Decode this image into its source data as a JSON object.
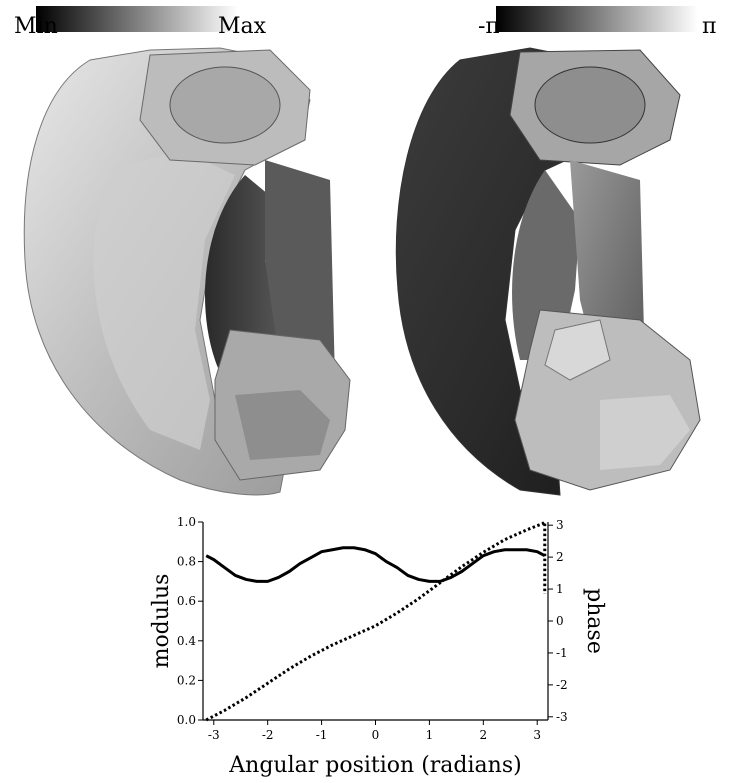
{
  "colorbars": {
    "modulus": {
      "min_label": "Min",
      "max_label": "Max",
      "from_color": "#000000",
      "to_color": "#ffffff"
    },
    "phase": {
      "min_label": "-π",
      "max_label": "π",
      "from_color": "#000000",
      "to_color": "#ffffff"
    }
  },
  "chart_data": {
    "type": "line",
    "xlabel": "Angular position (radians)",
    "ylabel": "modulus",
    "y2label": "phase",
    "xlim": [
      -3.2,
      3.2
    ],
    "ylim": [
      0,
      1.0
    ],
    "y2lim": [
      -3.1,
      3.1
    ],
    "xticks": [
      "-3",
      "-2",
      "-1",
      "0",
      "1",
      "2",
      "3"
    ],
    "yticks": [
      "0.0",
      "0.2",
      "0.4",
      "0.6",
      "0.8",
      "1.0"
    ],
    "y2ticks": [
      "-3",
      "-2",
      "-1",
      "0",
      "1",
      "2",
      "3"
    ],
    "series": [
      {
        "axis": "left",
        "style": "solid",
        "color": "#000000",
        "x": [
          -3.14,
          -3.0,
          -2.8,
          -2.6,
          -2.4,
          -2.2,
          -2.0,
          -1.8,
          -1.6,
          -1.4,
          -1.2,
          -1.0,
          -0.8,
          -0.6,
          -0.4,
          -0.2,
          0.0,
          0.2,
          0.4,
          0.6,
          0.8,
          1.0,
          1.2,
          1.4,
          1.6,
          1.8,
          2.0,
          2.2,
          2.4,
          2.6,
          2.8,
          3.0,
          3.14
        ],
        "y": [
          0.83,
          0.81,
          0.77,
          0.73,
          0.71,
          0.7,
          0.7,
          0.72,
          0.75,
          0.79,
          0.82,
          0.85,
          0.86,
          0.87,
          0.87,
          0.86,
          0.84,
          0.8,
          0.77,
          0.73,
          0.71,
          0.7,
          0.7,
          0.72,
          0.75,
          0.79,
          0.83,
          0.85,
          0.86,
          0.86,
          0.86,
          0.85,
          0.83
        ]
      },
      {
        "axis": "right",
        "style": "dotted",
        "color": "#000000",
        "x": [
          -3.14,
          -2.8,
          -2.4,
          -2.0,
          -1.6,
          -1.2,
          -0.8,
          -0.4,
          0.0,
          0.4,
          0.8,
          1.2,
          1.6,
          2.0,
          2.4,
          2.8,
          3.1,
          3.14,
          3.14
        ],
        "y": [
          -3.1,
          -2.8,
          -2.4,
          -1.95,
          -1.5,
          -1.1,
          -0.75,
          -0.45,
          -0.15,
          0.25,
          0.7,
          1.2,
          1.7,
          2.15,
          2.55,
          2.85,
          3.05,
          3.1,
          0.85
        ]
      }
    ]
  }
}
